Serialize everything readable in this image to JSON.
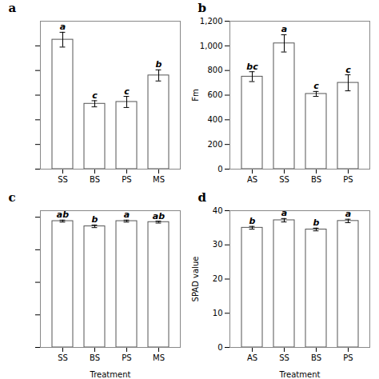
{
  "chart_data": [
    {
      "type": "bar",
      "title": "a",
      "categories": [
        "SS",
        "BS",
        "PS",
        "MS"
      ],
      "values": [
        1050,
        530,
        545,
        760
      ],
      "errors": [
        60,
        25,
        45,
        45
      ],
      "annotations": [
        "a",
        "c",
        "c",
        "b"
      ],
      "color": "#ffffff",
      "ylim": [
        0,
        1200
      ],
      "yticks": [
        0,
        200,
        400,
        600,
        800,
        1000
      ],
      "tick_labels": "x"
    },
    {
      "type": "bar",
      "title": "b",
      "categories": [
        "AS",
        "SS",
        "BS",
        "PS"
      ],
      "values": [
        750,
        1020,
        610,
        700
      ],
      "errors": [
        40,
        70,
        20,
        65
      ],
      "annotations": [
        "bc",
        "a",
        "c",
        "c"
      ],
      "color": "#ffffff",
      "ylabel": "Fm",
      "ylim": [
        0,
        1200
      ],
      "yticks": [
        0,
        200,
        400,
        600,
        800,
        1000,
        1200
      ]
    },
    {
      "type": "bar",
      "title": "c",
      "categories": [
        "SS",
        "BS",
        "PS",
        "MS"
      ],
      "values": [
        0.388,
        0.372,
        0.388,
        0.385
      ],
      "errors": [
        0.003,
        0.004,
        0.003,
        0.003
      ],
      "annotations": [
        "ab",
        "b",
        "a",
        "ab"
      ],
      "color": "#ffffff",
      "xlabel": "Treatment",
      "ylim": [
        0,
        0.42
      ],
      "yticks": [
        0,
        0.1,
        0.2,
        0.3,
        0.4
      ],
      "tick_labels": "x"
    },
    {
      "type": "bar",
      "title": "d",
      "categories": [
        "AS",
        "SS",
        "BS",
        "PS"
      ],
      "values": [
        35.0,
        37.2,
        34.5,
        37.0
      ],
      "errors": [
        0.4,
        0.5,
        0.4,
        0.5
      ],
      "annotations": [
        "b",
        "a",
        "b",
        "a"
      ],
      "color": "#ffffff",
      "xlabel": "Treatment",
      "ylabel": "SPAD value",
      "ylim": [
        0,
        40
      ],
      "yticks": [
        0,
        10,
        20,
        30,
        40
      ]
    }
  ]
}
